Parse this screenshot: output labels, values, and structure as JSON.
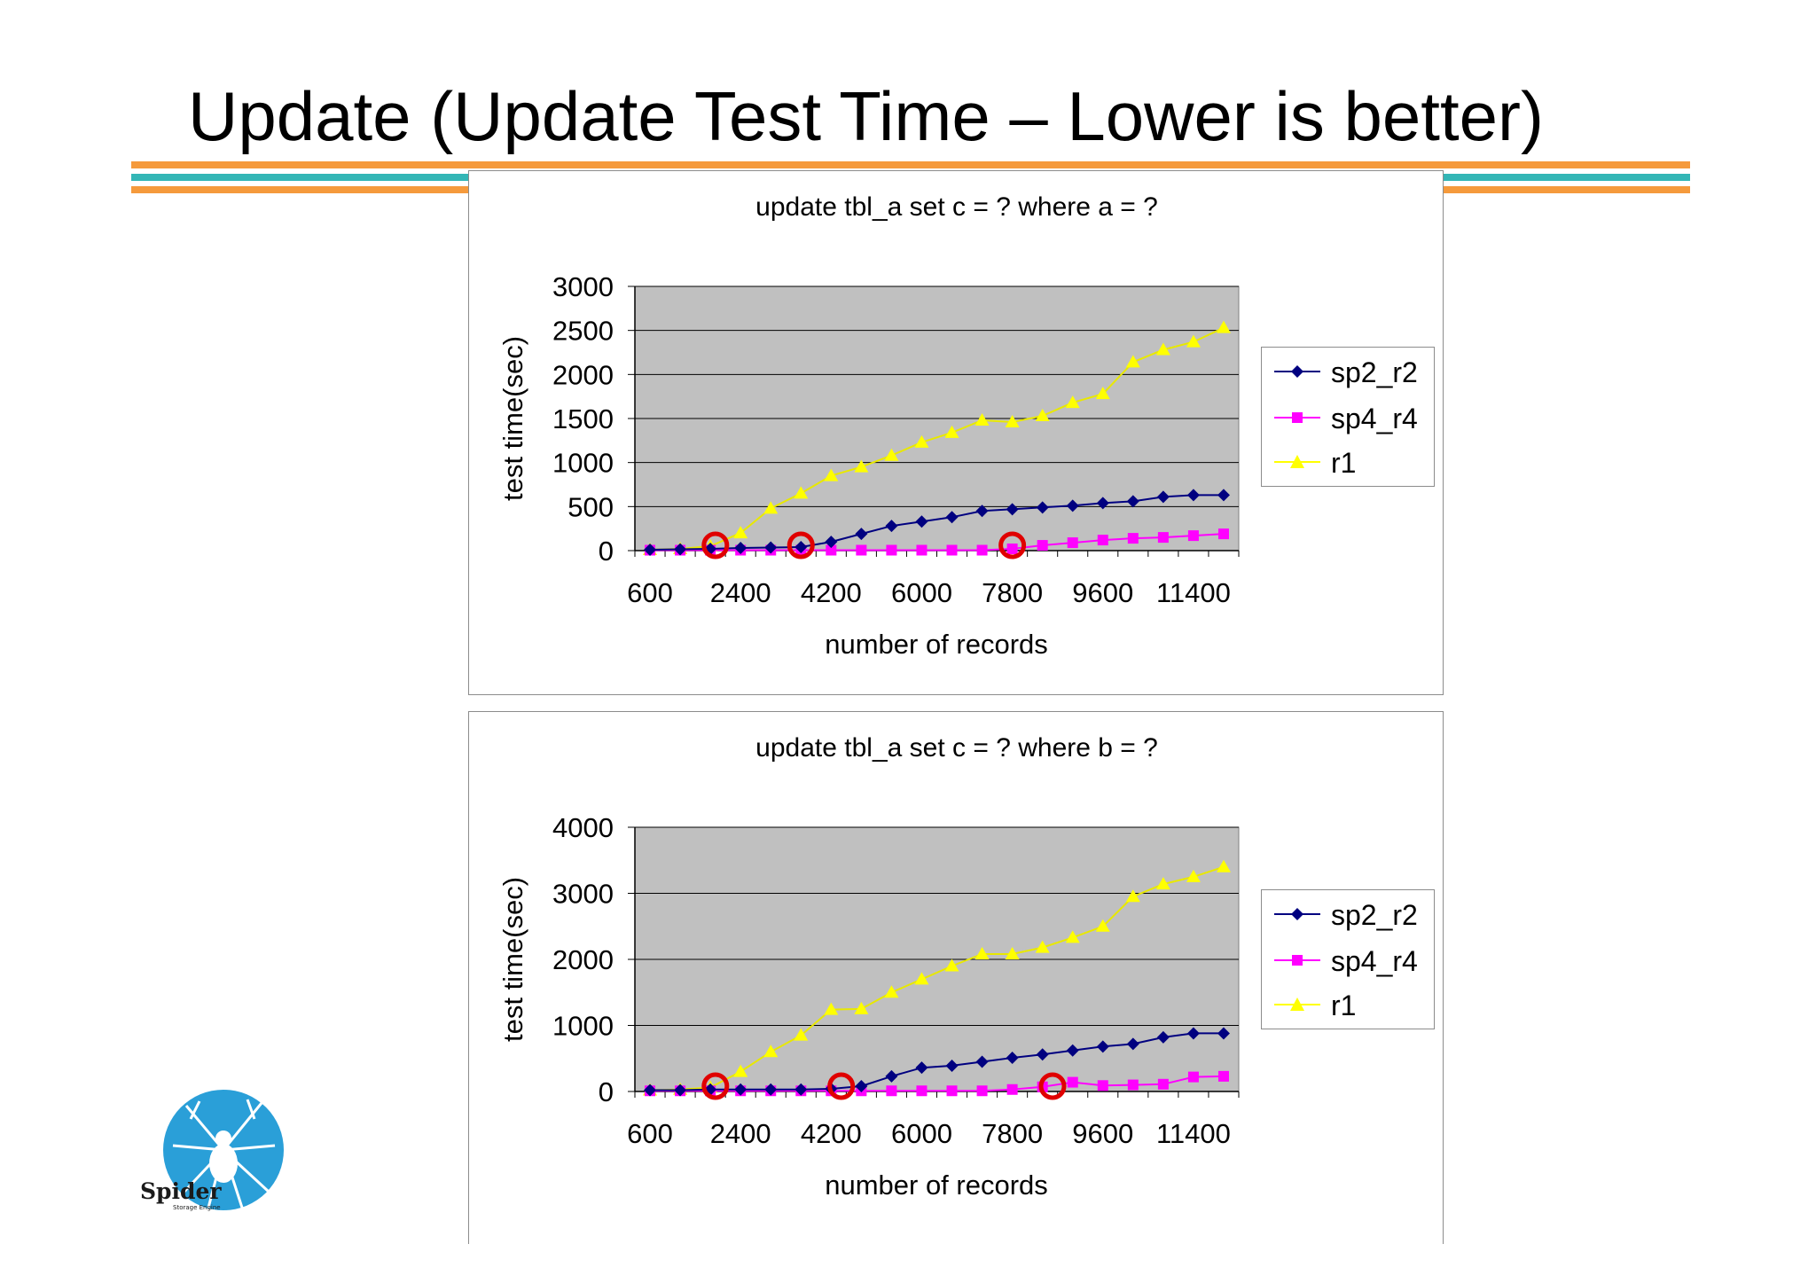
{
  "page": {
    "title": "Update (Update Test Time – Lower is better)"
  },
  "logo": {
    "text": "Spider",
    "subtext": "Storage Engine",
    "icon": "spider-icon",
    "color": "#2a9fd8"
  },
  "colors": {
    "stripe_orange": "#f59a3c",
    "stripe_teal": "#33b6b6",
    "plot_bg": "#c0c0c0",
    "highlight": "#e00000"
  },
  "chart_data": [
    {
      "type": "line",
      "title": "update tbl_a set c = ? where a = ?",
      "xlabel": "number of records",
      "ylabel": "test time(sec)",
      "x": [
        600,
        1200,
        1800,
        2400,
        3000,
        3600,
        4200,
        4800,
        5400,
        6000,
        6600,
        7200,
        7800,
        8400,
        9000,
        9600,
        10200,
        10800,
        11400,
        12000
      ],
      "x_tick_labels": [
        "600",
        "2400",
        "4200",
        "6000",
        "7800",
        "9600",
        "11400"
      ],
      "y_ticks": [
        0,
        500,
        1000,
        1500,
        2000,
        2500,
        3000
      ],
      "ylim": [
        0,
        3000
      ],
      "grid": "horizontal",
      "legend_position": "right",
      "series": [
        {
          "name": "sp2_r2",
          "color": "#000080",
          "marker": "diamond",
          "values": [
            10,
            15,
            20,
            30,
            35,
            40,
            100,
            190,
            280,
            330,
            380,
            450,
            470,
            490,
            510,
            540,
            560,
            610,
            630,
            630
          ]
        },
        {
          "name": "sp4_r4",
          "color": "#ff00ff",
          "marker": "square",
          "values": [
            5,
            5,
            5,
            5,
            5,
            5,
            5,
            5,
            5,
            5,
            5,
            5,
            20,
            60,
            90,
            120,
            140,
            150,
            170,
            190
          ]
        },
        {
          "name": "r1",
          "color": "#ffff00",
          "marker": "triangle",
          "values": [
            10,
            20,
            50,
            200,
            480,
            650,
            850,
            950,
            1080,
            1230,
            1340,
            1480,
            1460,
            1530,
            1680,
            1780,
            2140,
            2280,
            2370,
            2530
          ]
        }
      ],
      "highlight_circles_at_x": [
        1900,
        3600,
        7800
      ]
    },
    {
      "type": "line",
      "title": "update tbl_a set c = ? where b = ?",
      "xlabel": "number of records",
      "ylabel": "test time(sec)",
      "x": [
        600,
        1200,
        1800,
        2400,
        3000,
        3600,
        4200,
        4800,
        5400,
        6000,
        6600,
        7200,
        7800,
        8400,
        9000,
        9600,
        10200,
        10800,
        11400,
        12000
      ],
      "x_tick_labels": [
        "600",
        "2400",
        "4200",
        "6000",
        "7800",
        "9600",
        "11400"
      ],
      "y_ticks": [
        0,
        1000,
        2000,
        3000,
        4000
      ],
      "ylim": [
        0,
        4000
      ],
      "grid": "horizontal",
      "legend_position": "right",
      "series": [
        {
          "name": "sp2_r2",
          "color": "#000080",
          "marker": "diamond",
          "values": [
            20,
            20,
            30,
            30,
            30,
            30,
            40,
            80,
            230,
            360,
            390,
            450,
            510,
            560,
            620,
            680,
            720,
            820,
            880,
            880
          ]
        },
        {
          "name": "sp4_r4",
          "color": "#ff00ff",
          "marker": "square",
          "values": [
            10,
            10,
            10,
            10,
            10,
            10,
            10,
            10,
            10,
            10,
            10,
            10,
            30,
            70,
            140,
            90,
            100,
            110,
            220,
            230
          ]
        },
        {
          "name": "r1",
          "color": "#ffff00",
          "marker": "triangle",
          "values": [
            20,
            30,
            60,
            300,
            600,
            850,
            1240,
            1250,
            1500,
            1700,
            1900,
            2080,
            2080,
            2180,
            2330,
            2500,
            2950,
            3140,
            3250,
            3400
          ]
        }
      ],
      "highlight_circles_at_x": [
        1900,
        4400,
        8600
      ]
    }
  ]
}
